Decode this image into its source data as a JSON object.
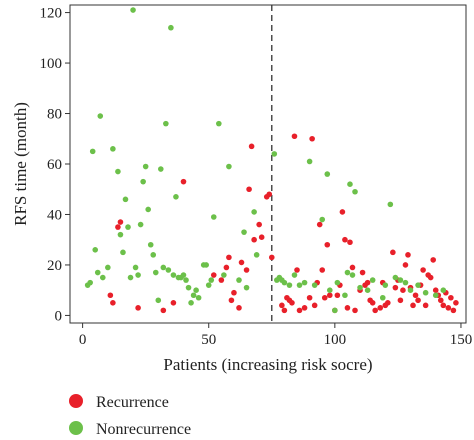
{
  "chart_data": {
    "type": "scatter",
    "title": "",
    "xlabel": "Patients (increasing risk socre)",
    "ylabel": "RFS time (month)",
    "xlim": [
      -5,
      152
    ],
    "ylim": [
      -3,
      123
    ],
    "xticks": [
      0,
      50,
      100,
      150
    ],
    "yticks": [
      0,
      20,
      40,
      60,
      80,
      100,
      120
    ],
    "cutoff_x": 75,
    "grid": false,
    "legend_placement": "bottom-left",
    "series": [
      {
        "name": "Recurrence",
        "color": "#e8202a",
        "points": [
          [
            11,
            8
          ],
          [
            12,
            5
          ],
          [
            14,
            35
          ],
          [
            15,
            37
          ],
          [
            22,
            3
          ],
          [
            32,
            2
          ],
          [
            36,
            5
          ],
          [
            40,
            53
          ],
          [
            52,
            16
          ],
          [
            55,
            14
          ],
          [
            57,
            19
          ],
          [
            58,
            23
          ],
          [
            59,
            6
          ],
          [
            60,
            9
          ],
          [
            62,
            3
          ],
          [
            63,
            21
          ],
          [
            65,
            18
          ],
          [
            66,
            50
          ],
          [
            67,
            67
          ],
          [
            68,
            30
          ],
          [
            70,
            36
          ],
          [
            71,
            31
          ],
          [
            73,
            47
          ],
          [
            74,
            48
          ],
          [
            75,
            23
          ],
          [
            79,
            4
          ],
          [
            80,
            2
          ],
          [
            81,
            7
          ],
          [
            82,
            6
          ],
          [
            83,
            5
          ],
          [
            84,
            71
          ],
          [
            85,
            18
          ],
          [
            86,
            2
          ],
          [
            88,
            3
          ],
          [
            90,
            7
          ],
          [
            91,
            70
          ],
          [
            92,
            4
          ],
          [
            93,
            13
          ],
          [
            94,
            36
          ],
          [
            95,
            18
          ],
          [
            96,
            7
          ],
          [
            97,
            28
          ],
          [
            98,
            8
          ],
          [
            100,
            2
          ],
          [
            101,
            8
          ],
          [
            102,
            12
          ],
          [
            103,
            41
          ],
          [
            104,
            30
          ],
          [
            105,
            3
          ],
          [
            106,
            29
          ],
          [
            107,
            19
          ],
          [
            108,
            2
          ],
          [
            110,
            10
          ],
          [
            111,
            17
          ],
          [
            112,
            12
          ],
          [
            113,
            13
          ],
          [
            114,
            6
          ],
          [
            115,
            5
          ],
          [
            116,
            2
          ],
          [
            118,
            3
          ],
          [
            119,
            13
          ],
          [
            120,
            4
          ],
          [
            121,
            5
          ],
          [
            123,
            25
          ],
          [
            124,
            11
          ],
          [
            125,
            14
          ],
          [
            126,
            6
          ],
          [
            127,
            10
          ],
          [
            128,
            20
          ],
          [
            129,
            24
          ],
          [
            130,
            11
          ],
          [
            131,
            4
          ],
          [
            132,
            8
          ],
          [
            133,
            6
          ],
          [
            134,
            12
          ],
          [
            135,
            18
          ],
          [
            136,
            4
          ],
          [
            137,
            16
          ],
          [
            138,
            15
          ],
          [
            139,
            22
          ],
          [
            140,
            10
          ],
          [
            141,
            8
          ],
          [
            142,
            6
          ],
          [
            143,
            4
          ],
          [
            144,
            9
          ],
          [
            145,
            3
          ],
          [
            146,
            7
          ],
          [
            147,
            2
          ],
          [
            148,
            5
          ]
        ]
      },
      {
        "name": "Nonrecurrence",
        "color": "#6cc04a",
        "points": [
          [
            2,
            12
          ],
          [
            3,
            13
          ],
          [
            4,
            65
          ],
          [
            5,
            26
          ],
          [
            6,
            17
          ],
          [
            7,
            79
          ],
          [
            8,
            15
          ],
          [
            10,
            19
          ],
          [
            12,
            66
          ],
          [
            14,
            57
          ],
          [
            15,
            32
          ],
          [
            16,
            25
          ],
          [
            17,
            46
          ],
          [
            18,
            35
          ],
          [
            19,
            15
          ],
          [
            20,
            121
          ],
          [
            21,
            19
          ],
          [
            22,
            16
          ],
          [
            23,
            36
          ],
          [
            24,
            53
          ],
          [
            25,
            59
          ],
          [
            26,
            42
          ],
          [
            27,
            28
          ],
          [
            28,
            24
          ],
          [
            29,
            17
          ],
          [
            30,
            6
          ],
          [
            31,
            58
          ],
          [
            32,
            19
          ],
          [
            33,
            76
          ],
          [
            34,
            18
          ],
          [
            35,
            114
          ],
          [
            36,
            16
          ],
          [
            37,
            47
          ],
          [
            38,
            15
          ],
          [
            39,
            15
          ],
          [
            40,
            16
          ],
          [
            41,
            14
          ],
          [
            42,
            11
          ],
          [
            43,
            5
          ],
          [
            44,
            8
          ],
          [
            45,
            10
          ],
          [
            46,
            7
          ],
          [
            48,
            20
          ],
          [
            49,
            20
          ],
          [
            50,
            12
          ],
          [
            51,
            14
          ],
          [
            52,
            39
          ],
          [
            54,
            76
          ],
          [
            56,
            16
          ],
          [
            58,
            59
          ],
          [
            62,
            14
          ],
          [
            64,
            33
          ],
          [
            65,
            11
          ],
          [
            68,
            41
          ],
          [
            69,
            24
          ],
          [
            76,
            64
          ],
          [
            77,
            14
          ],
          [
            78,
            15
          ],
          [
            79,
            14
          ],
          [
            80,
            13
          ],
          [
            82,
            12
          ],
          [
            84,
            16
          ],
          [
            86,
            12
          ],
          [
            88,
            13
          ],
          [
            90,
            61
          ],
          [
            92,
            12
          ],
          [
            95,
            38
          ],
          [
            97,
            56
          ],
          [
            98,
            10
          ],
          [
            100,
            2
          ],
          [
            101,
            13
          ],
          [
            104,
            8
          ],
          [
            105,
            17
          ],
          [
            106,
            52
          ],
          [
            107,
            16
          ],
          [
            108,
            49
          ],
          [
            110,
            11
          ],
          [
            113,
            10
          ],
          [
            115,
            14
          ],
          [
            119,
            7
          ],
          [
            120,
            12
          ],
          [
            122,
            44
          ],
          [
            124,
            15
          ],
          [
            126,
            14
          ],
          [
            128,
            13
          ],
          [
            130,
            10
          ],
          [
            133,
            12
          ],
          [
            136,
            9
          ],
          [
            140,
            8
          ],
          [
            143,
            10
          ]
        ]
      }
    ]
  }
}
